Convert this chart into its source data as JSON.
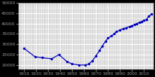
{
  "years": [
    1910,
    1919,
    1925,
    1933,
    1939,
    1946,
    1950,
    1956,
    1961,
    1964,
    1967,
    1970,
    1973,
    1975,
    1978,
    1980,
    1983,
    1985,
    1987,
    1990,
    1993,
    1995,
    1998,
    2000,
    2002,
    2004,
    2006,
    2008,
    2010,
    2012,
    2014,
    2016
  ],
  "population": [
    28000,
    24000,
    23500,
    23000,
    25000,
    21500,
    20500,
    20000,
    20000,
    20500,
    22000,
    24500,
    27000,
    29000,
    31500,
    33000,
    34000,
    35000,
    36000,
    37000,
    37500,
    38000,
    38500,
    39000,
    39500,
    40000,
    40500,
    41000,
    41500,
    42000,
    43500,
    44500
  ],
  "ylim": [
    18000,
    50000
  ],
  "xlim": [
    1905,
    2018
  ],
  "line_color": "#0000bb",
  "marker": "o",
  "marker_size": 1.5,
  "line_width": 0.9,
  "bg_color": "#000000",
  "plot_bg_color": "#d8d8d8",
  "grid_color_major": "#ffffff",
  "grid_color_minor": "#b0b0b0",
  "tick_fontsize": 4.5,
  "tick_color": "#cccccc"
}
